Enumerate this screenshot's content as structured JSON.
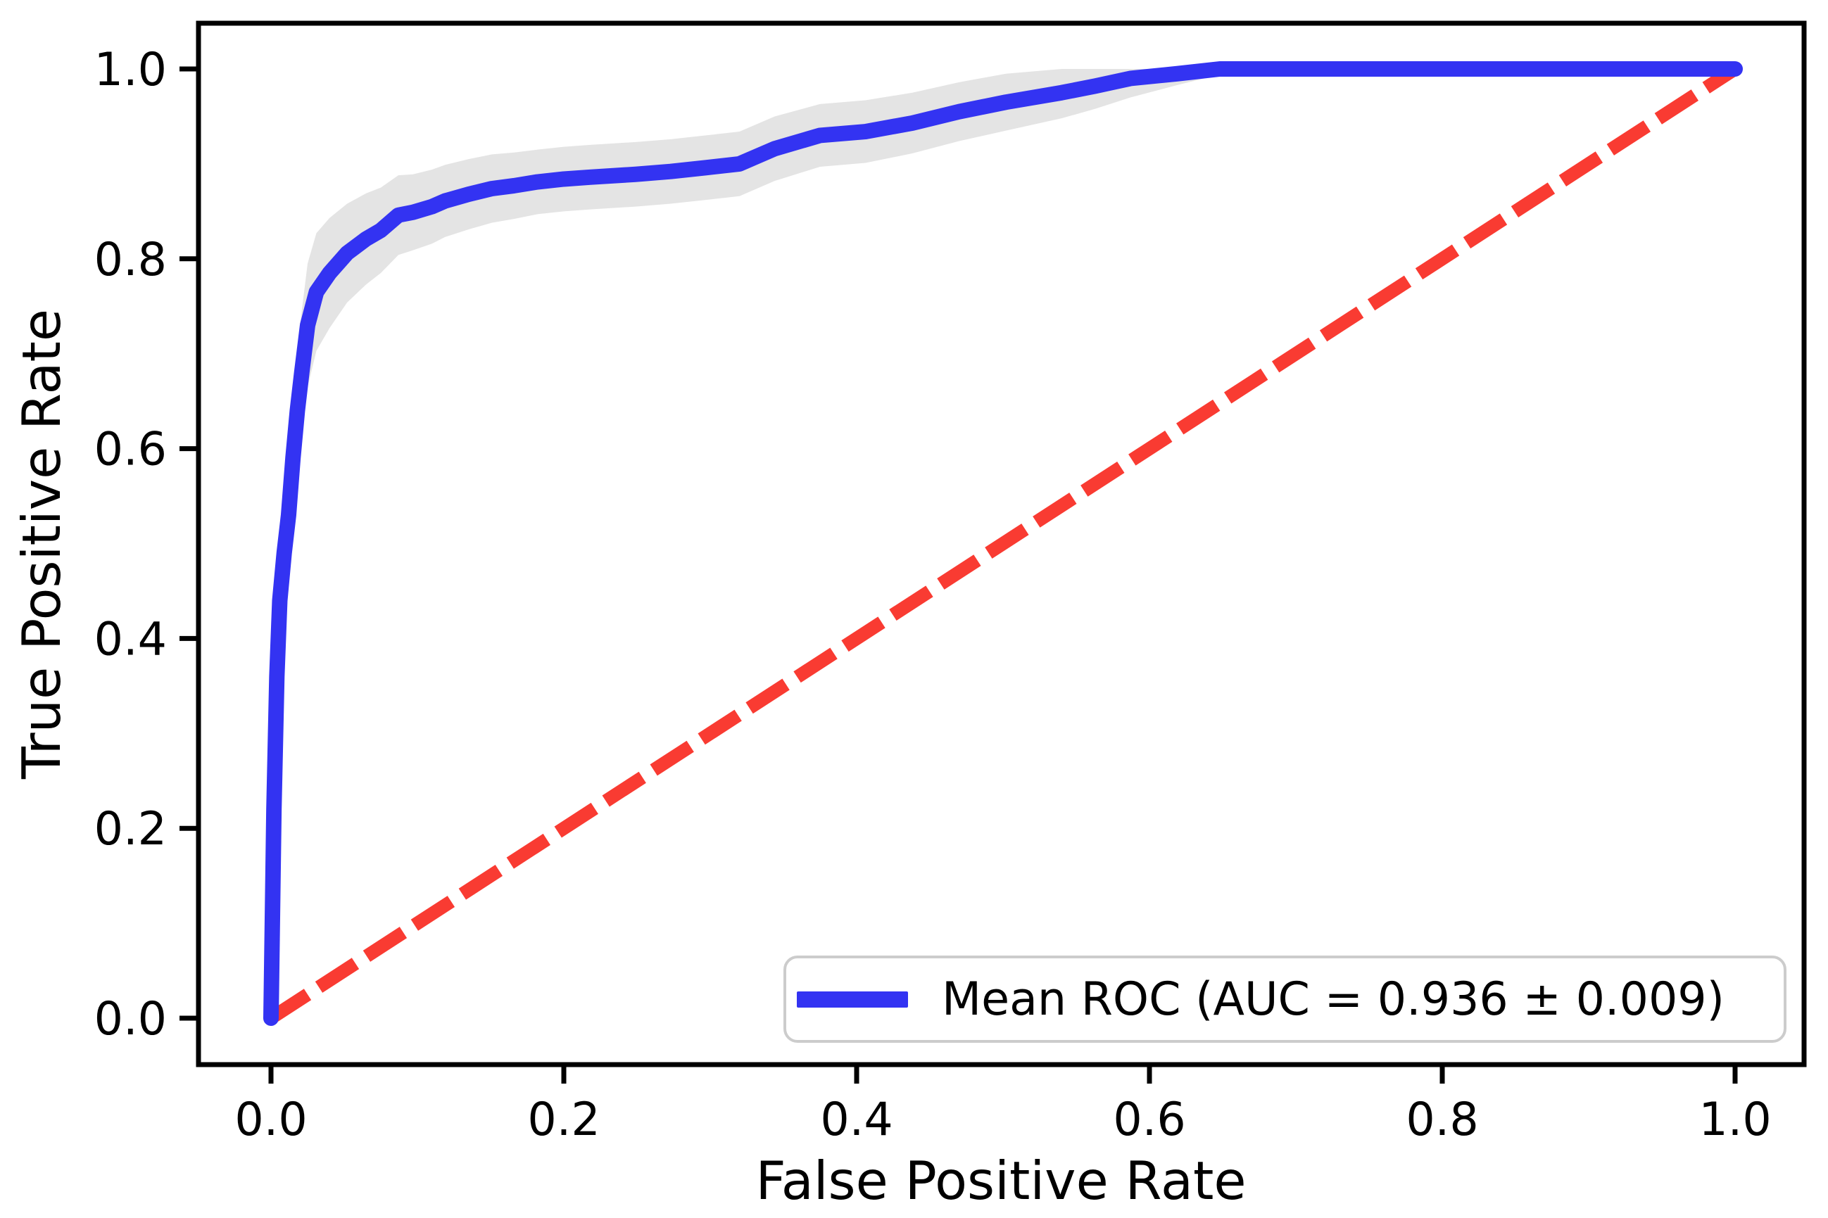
{
  "figure": {
    "xlabel": "False Positive Rate",
    "ylabel": "True Positive Rate",
    "x_tick_labels": [
      "0.0",
      "0.2",
      "0.4",
      "0.6",
      "0.8",
      "1.0"
    ],
    "y_tick_labels": [
      "0.0",
      "0.2",
      "0.4",
      "0.6",
      "0.8",
      "1.0"
    ]
  },
  "legend": {
    "label": "Mean ROC (AUC = 0.936 ± 0.009)",
    "position": "lower right"
  },
  "colors": {
    "mean_roc_line": "#3333f2",
    "chance_line": "#f93b32",
    "std_band": "#e4e4e4",
    "legend_border": "#cccccc",
    "axes": "#000000"
  },
  "chart_data": {
    "type": "line",
    "title": "",
    "xlabel": "False Positive Rate",
    "ylabel": "True Positive Rate",
    "xlim": [
      -0.05,
      1.05
    ],
    "ylim": [
      -0.05,
      1.05
    ],
    "xticks": [
      0.0,
      0.2,
      0.4,
      0.6,
      0.8,
      1.0
    ],
    "yticks": [
      0.0,
      0.2,
      0.4,
      0.6,
      0.8,
      1.0
    ],
    "grid": false,
    "legend_position": "lower right",
    "auc_mean": 0.936,
    "auc_std": 0.009,
    "series": [
      {
        "name": "Mean ROC (AUC = 0.936 ± 0.009)",
        "style": "solid",
        "fpr": [
          0.0,
          0.002,
          0.004,
          0.006,
          0.009,
          0.012,
          0.015,
          0.018,
          0.021,
          0.025,
          0.031,
          0.04,
          0.052,
          0.065,
          0.075,
          0.087,
          0.097,
          0.11,
          0.119,
          0.135,
          0.151,
          0.166,
          0.182,
          0.2,
          0.218,
          0.249,
          0.273,
          0.297,
          0.32,
          0.344,
          0.375,
          0.406,
          0.438,
          0.47,
          0.502,
          0.54,
          0.563,
          0.587,
          0.619,
          0.648,
          0.7,
          0.8,
          0.9,
          1.0
        ],
        "tpr": [
          0.0,
          0.22,
          0.36,
          0.44,
          0.49,
          0.53,
          0.59,
          0.64,
          0.68,
          0.73,
          0.765,
          0.785,
          0.806,
          0.821,
          0.83,
          0.846,
          0.849,
          0.855,
          0.861,
          0.868,
          0.874,
          0.877,
          0.881,
          0.884,
          0.886,
          0.889,
          0.892,
          0.896,
          0.9,
          0.916,
          0.93,
          0.934,
          0.943,
          0.955,
          0.965,
          0.975,
          0.982,
          0.99,
          0.995,
          1.0,
          1.0,
          1.0,
          1.0,
          1.0
        ],
        "tpr_std": [
          0.005,
          0.04,
          0.05,
          0.055,
          0.058,
          0.06,
          0.062,
          0.064,
          0.065,
          0.065,
          0.062,
          0.058,
          0.052,
          0.048,
          0.045,
          0.042,
          0.04,
          0.039,
          0.038,
          0.037,
          0.036,
          0.035,
          0.034,
          0.034,
          0.034,
          0.034,
          0.034,
          0.034,
          0.034,
          0.034,
          0.033,
          0.033,
          0.032,
          0.031,
          0.03,
          0.027,
          0.024,
          0.02,
          0.012,
          0.006,
          0.0,
          0.0,
          0.0,
          0.0
        ]
      },
      {
        "name": "chance_diagonal",
        "style": "dashed",
        "x": [
          0,
          1
        ],
        "y": [
          0,
          1
        ]
      }
    ],
    "band": {
      "name": "std_dev_band",
      "derived_from": "mean tpr ± tpr_std, clipped to [0,1]",
      "last_index": 39
    }
  }
}
